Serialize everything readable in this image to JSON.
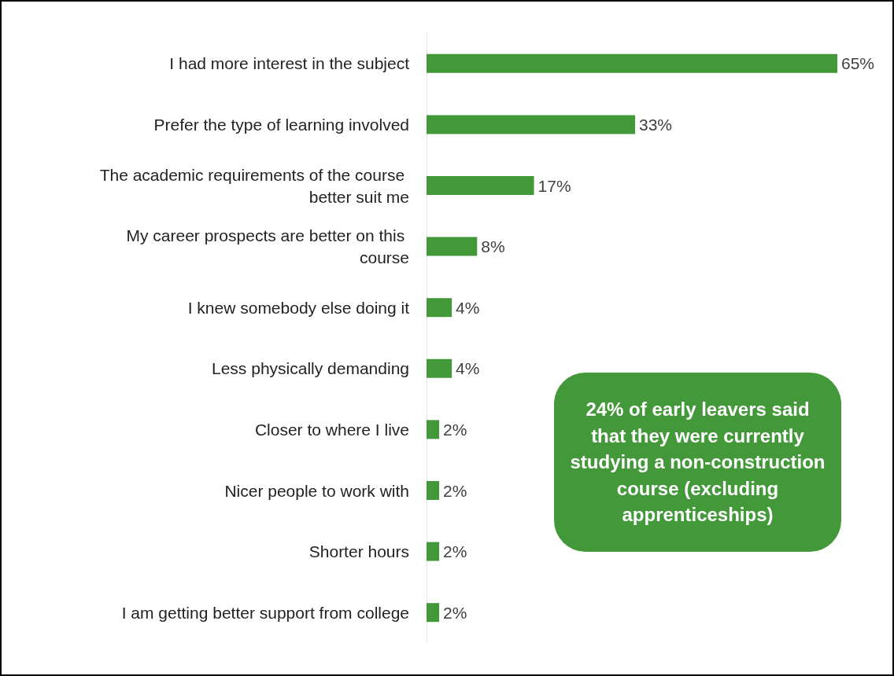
{
  "chart_data": {
    "type": "bar",
    "orientation": "horizontal",
    "categories": [
      "I had more interest in the subject",
      "Prefer the type of learning involved",
      "The academic requirements of the course better suit me",
      "My career prospects are better on this course",
      "I knew somebody else doing it",
      "Less physically demanding",
      "Closer to where I live",
      "Nicer people to work with",
      "Shorter hours",
      "I am getting better support from college"
    ],
    "values": [
      65,
      33,
      17,
      8,
      4,
      4,
      2,
      2,
      2,
      2
    ],
    "value_labels": [
      "65%",
      "33%",
      "17%",
      "8%",
      "4%",
      "4%",
      "2%",
      "2%",
      "2%",
      "2%"
    ],
    "color": "#43983a",
    "annotations": [
      "24% of early leavers said that they were currently studying a non-construction course (excluding apprenticeships)"
    ]
  }
}
